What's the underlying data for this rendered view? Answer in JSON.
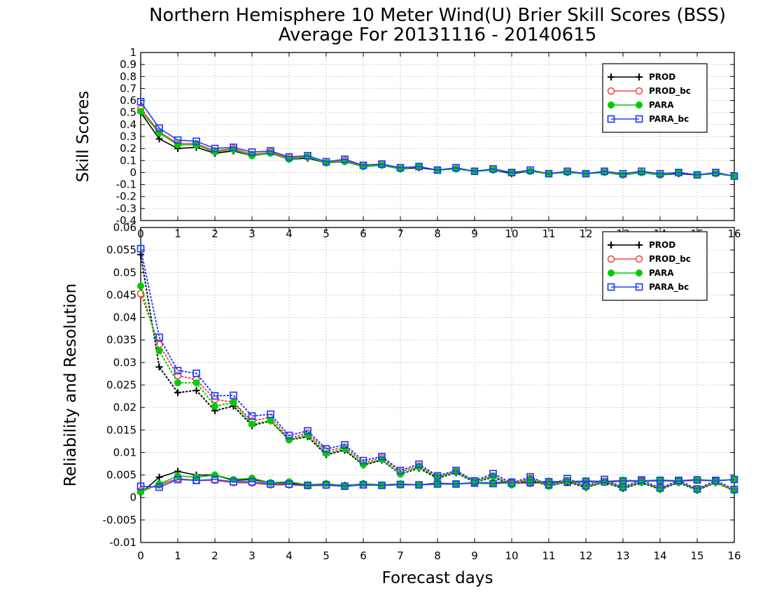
{
  "title_line1": "Northern Hemisphere 10 Meter Wind(U) Brier Skill Scores (BSS)",
  "title_line2": "Average For 20131116 - 20140615",
  "colors": {
    "PROD": "#000000",
    "PROD_bc": "#ff3b3b",
    "PARA": "#00cc00",
    "PARA_bc": "#1f3fff"
  },
  "chart_data": [
    {
      "type": "line",
      "ylabel": "Skill Scores",
      "xlabel": "",
      "xlim": [
        0,
        16
      ],
      "ylim": [
        -0.4,
        1
      ],
      "x_ticks": [
        0,
        1,
        2,
        3,
        4,
        5,
        6,
        7,
        8,
        9,
        10,
        11,
        12,
        13,
        14,
        15,
        16
      ],
      "y_ticks": [
        -0.4,
        -0.3,
        -0.2,
        -0.1,
        0,
        0.1,
        0.2,
        0.3,
        0.4,
        0.5,
        0.6,
        0.7,
        0.8,
        0.9,
        1
      ],
      "y_tick_labels": [
        "-0.4",
        "-0.3",
        "-0.2",
        "-0.1",
        "0",
        "0.1",
        "0.2",
        "0.3",
        "0.4",
        "0.5",
        "0.6",
        "0.7",
        "0.8",
        "0.9",
        "1"
      ],
      "grid": true,
      "legend_position": "top-right",
      "x": [
        0,
        0.5,
        1,
        1.5,
        2,
        2.5,
        3,
        3.5,
        4,
        4.5,
        5,
        5.5,
        6,
        6.5,
        7,
        7.5,
        8,
        8.5,
        9,
        9.5,
        10,
        10.5,
        11,
        11.5,
        12,
        12.5,
        13,
        13.5,
        14,
        14.5,
        15,
        15.5,
        16
      ],
      "series": [
        {
          "name": "PROD",
          "marker": "plus",
          "line": "solid",
          "values": [
            0.5,
            0.28,
            0.2,
            0.21,
            0.16,
            0.18,
            0.14,
            0.16,
            0.11,
            0.12,
            0.08,
            0.09,
            0.05,
            0.06,
            0.03,
            0.04,
            0.02,
            0.03,
            0.01,
            0.02,
            -0.01,
            0.01,
            -0.01,
            0.0,
            -0.01,
            0.0,
            -0.02,
            0.0,
            -0.02,
            -0.01,
            -0.02,
            -0.01,
            -0.03
          ]
        },
        {
          "name": "PROD_bc",
          "marker": "circle-open",
          "line": "solid",
          "values": [
            0.53,
            0.34,
            0.24,
            0.24,
            0.18,
            0.2,
            0.15,
            0.17,
            0.12,
            0.13,
            0.08,
            0.1,
            0.06,
            0.07,
            0.04,
            0.05,
            0.02,
            0.03,
            0.01,
            0.03,
            0.0,
            0.01,
            -0.01,
            0.01,
            -0.01,
            0.01,
            -0.02,
            0.0,
            -0.02,
            0.0,
            -0.02,
            0.0,
            -0.03
          ]
        },
        {
          "name": "PARA",
          "marker": "circle-filled",
          "line": "solid",
          "values": [
            0.51,
            0.33,
            0.23,
            0.23,
            0.17,
            0.19,
            0.14,
            0.16,
            0.11,
            0.13,
            0.08,
            0.09,
            0.05,
            0.06,
            0.03,
            0.05,
            0.02,
            0.03,
            0.01,
            0.02,
            0.0,
            0.01,
            -0.01,
            0.0,
            -0.01,
            0.0,
            -0.02,
            0.0,
            -0.02,
            0.0,
            -0.02,
            -0.01,
            -0.03
          ]
        },
        {
          "name": "PARA_bc",
          "marker": "square-open",
          "line": "solid",
          "values": [
            0.59,
            0.37,
            0.27,
            0.26,
            0.2,
            0.21,
            0.17,
            0.18,
            0.13,
            0.14,
            0.09,
            0.11,
            0.06,
            0.07,
            0.04,
            0.05,
            0.02,
            0.04,
            0.01,
            0.03,
            0.0,
            0.02,
            -0.01,
            0.01,
            -0.01,
            0.01,
            -0.01,
            0.01,
            -0.01,
            0.0,
            -0.02,
            0.0,
            -0.03
          ]
        }
      ]
    },
    {
      "type": "line",
      "ylabel": "Reliability and Resolution",
      "xlabel": "Forecast days",
      "xlim": [
        0,
        16
      ],
      "ylim": [
        -0.01,
        0.06
      ],
      "x_ticks": [
        0,
        1,
        2,
        3,
        4,
        5,
        6,
        7,
        8,
        9,
        10,
        11,
        12,
        13,
        14,
        15,
        16
      ],
      "y_ticks": [
        -0.01,
        -0.005,
        0,
        0.005,
        0.01,
        0.015,
        0.02,
        0.025,
        0.03,
        0.035,
        0.04,
        0.045,
        0.05,
        0.055,
        0.06
      ],
      "y_tick_labels": [
        "-0.01",
        "-0.005",
        "0",
        "0.005",
        "0.01",
        "0.015",
        "0.02",
        "0.025",
        "0.03",
        "0.035",
        "0.04",
        "0.045",
        "0.05",
        "0.055",
        "0.06"
      ],
      "grid": true,
      "legend_position": "top-right",
      "x": [
        0,
        0.5,
        1,
        1.5,
        2,
        2.5,
        3,
        3.5,
        4,
        4.5,
        5,
        5.5,
        6,
        6.5,
        7,
        7.5,
        8,
        8.5,
        9,
        9.5,
        10,
        10.5,
        11,
        11.5,
        12,
        12.5,
        13,
        13.5,
        14,
        14.5,
        15,
        15.5,
        16
      ],
      "series": [
        {
          "name": "PROD",
          "group": "reliability",
          "marker": "plus",
          "line": "solid",
          "values": [
            0.001,
            0.0045,
            0.0058,
            0.005,
            0.005,
            0.0038,
            0.004,
            0.0033,
            0.0033,
            0.0028,
            0.003,
            0.0027,
            0.003,
            0.0028,
            0.003,
            0.0028,
            0.0032,
            0.003,
            0.0033,
            0.0033,
            0.0035,
            0.0033,
            0.0036,
            0.0035,
            0.0037,
            0.0035,
            0.0038,
            0.0037,
            0.0038,
            0.0037,
            0.004,
            0.0037,
            0.004
          ]
        },
        {
          "name": "PROD_bc",
          "group": "reliability",
          "marker": "circle-open",
          "line": "solid",
          "values": [
            0.0015,
            0.0028,
            0.0042,
            0.0038,
            0.0038,
            0.0033,
            0.0032,
            0.0028,
            0.0028,
            0.0026,
            0.0027,
            0.0025,
            0.0028,
            0.0027,
            0.0028,
            0.0028,
            0.003,
            0.003,
            0.0032,
            0.0031,
            0.0033,
            0.0031,
            0.0034,
            0.0033,
            0.0035,
            0.0034,
            0.0036,
            0.0036,
            0.0037,
            0.0036,
            0.0038,
            0.0037,
            0.004
          ]
        },
        {
          "name": "PARA",
          "group": "reliability",
          "marker": "circle-filled",
          "line": "solid",
          "values": [
            0.0012,
            0.003,
            0.0048,
            0.0045,
            0.005,
            0.004,
            0.0043,
            0.0033,
            0.0035,
            0.0028,
            0.0031,
            0.0026,
            0.0031,
            0.0028,
            0.003,
            0.0028,
            0.0031,
            0.003,
            0.0034,
            0.0032,
            0.0035,
            0.0033,
            0.0036,
            0.0035,
            0.0037,
            0.0036,
            0.0038,
            0.0037,
            0.0039,
            0.0037,
            0.0039,
            0.0038,
            0.004
          ]
        },
        {
          "name": "PARA_bc",
          "group": "reliability",
          "marker": "square-open",
          "line": "solid",
          "values": [
            0.0025,
            0.0023,
            0.004,
            0.0038,
            0.004,
            0.0035,
            0.0035,
            0.003,
            0.003,
            0.0027,
            0.0028,
            0.0025,
            0.0028,
            0.0027,
            0.0029,
            0.0028,
            0.003,
            0.003,
            0.0032,
            0.0031,
            0.0034,
            0.0033,
            0.0035,
            0.0034,
            0.0036,
            0.0035,
            0.0037,
            0.0036,
            0.0038,
            0.0037,
            0.0039,
            0.0037,
            0.004
          ]
        },
        {
          "name": "PROD",
          "group": "resolution",
          "marker": "plus",
          "line": "dotted",
          "values": [
            0.054,
            0.029,
            0.0233,
            0.0238,
            0.0193,
            0.0203,
            0.016,
            0.017,
            0.0128,
            0.0135,
            0.0095,
            0.0105,
            0.0072,
            0.0083,
            0.0052,
            0.0065,
            0.0043,
            0.0055,
            0.0034,
            0.0045,
            0.0028,
            0.004,
            0.0025,
            0.0035,
            0.0022,
            0.0034,
            0.002,
            0.0033,
            0.0018,
            0.0033,
            0.0016,
            0.0033,
            0.0015
          ]
        },
        {
          "name": "PROD_bc",
          "group": "resolution",
          "marker": "circle-open",
          "line": "dotted",
          "values": [
            0.0453,
            0.034,
            0.0271,
            0.0262,
            0.0218,
            0.0212,
            0.017,
            0.0178,
            0.0132,
            0.0143,
            0.0103,
            0.0112,
            0.0077,
            0.0088,
            0.0057,
            0.007,
            0.0046,
            0.0058,
            0.0036,
            0.0048,
            0.003,
            0.0043,
            0.0027,
            0.0038,
            0.0024,
            0.0036,
            0.0022,
            0.0035,
            0.002,
            0.0034,
            0.0018,
            0.0034,
            0.0016
          ]
        },
        {
          "name": "PARA",
          "group": "resolution",
          "marker": "circle-filled",
          "line": "dotted",
          "values": [
            0.047,
            0.0326,
            0.0255,
            0.0255,
            0.0203,
            0.0211,
            0.0163,
            0.0171,
            0.0128,
            0.0139,
            0.0098,
            0.0108,
            0.0073,
            0.0085,
            0.0052,
            0.0068,
            0.0045,
            0.0057,
            0.0035,
            0.0047,
            0.0028,
            0.0041,
            0.0025,
            0.0037,
            0.0023,
            0.0035,
            0.0021,
            0.0034,
            0.0019,
            0.0034,
            0.0017,
            0.0034,
            0.0015
          ]
        },
        {
          "name": "PARA_bc",
          "group": "resolution",
          "marker": "square-open",
          "line": "dotted",
          "values": [
            0.0553,
            0.0356,
            0.0282,
            0.0276,
            0.0226,
            0.0227,
            0.0181,
            0.0185,
            0.0138,
            0.0148,
            0.0108,
            0.0117,
            0.0082,
            0.0091,
            0.006,
            0.0074,
            0.0048,
            0.006,
            0.0037,
            0.0053,
            0.0032,
            0.0046,
            0.0028,
            0.0042,
            0.0026,
            0.004,
            0.0023,
            0.0039,
            0.0021,
            0.0038,
            0.0019,
            0.0038,
            0.0018
          ]
        }
      ]
    }
  ]
}
